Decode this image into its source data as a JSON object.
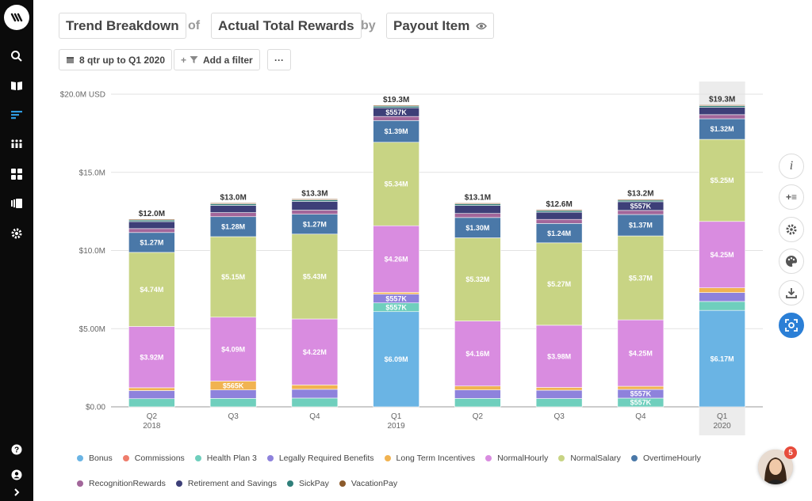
{
  "header": {
    "view": "Trend Breakdown",
    "of_label": "of",
    "metric": "Actual Total Rewards",
    "by_label": "by",
    "dimension": "Payout Item"
  },
  "toolbar": {
    "time_range": "8 qtr up to Q1 2020",
    "add_filter": "Add a filter",
    "more": "···"
  },
  "right_tools": {
    "info": "i",
    "add": "+≡"
  },
  "notification_count": "5",
  "colors": {
    "Bonus": "#6ab4e4",
    "Commissions": "#ef7d6c",
    "Health Plan 3": "#6fcfbd",
    "Legally Required Benefits": "#8e82dc",
    "Long Term Incentives": "#f1b351",
    "NormalHourly": "#d98ce0",
    "NormalSalary": "#c8d484",
    "OvertimeHourly": "#4a78a8",
    "RecognitionRewards": "#a2669a",
    "Retirement and Savings": "#3d3f78",
    "SickPay": "#2f7f7a",
    "VacationPay": "#8b5a2b"
  },
  "chart_data": {
    "type": "bar",
    "stacked": true,
    "title": "Trend Breakdown of Actual Total Rewards by Payout Item",
    "ylim": [
      0,
      20000000
    ],
    "yticks": [
      {
        "value": 0,
        "label": "$0.00"
      },
      {
        "value": 5000000,
        "label": "$5.00M"
      },
      {
        "value": 10000000,
        "label": "$10.0M"
      },
      {
        "value": 15000000,
        "label": "$15.0M"
      },
      {
        "value": 20000000,
        "label": "$20.0M USD"
      }
    ],
    "categories": [
      {
        "label": "Q2",
        "sub": "2018"
      },
      {
        "label": "Q3",
        "sub": ""
      },
      {
        "label": "Q4",
        "sub": ""
      },
      {
        "label": "Q1",
        "sub": "2019"
      },
      {
        "label": "Q2",
        "sub": ""
      },
      {
        "label": "Q3",
        "sub": ""
      },
      {
        "label": "Q4",
        "sub": ""
      },
      {
        "label": "Q1",
        "sub": "2020"
      }
    ],
    "highlighted_category": 7,
    "totals": [
      "$12.0M",
      "$13.0M",
      "$13.3M",
      "$19.3M",
      "$13.1M",
      "$12.6M",
      "$13.2M",
      "$19.3M"
    ],
    "series": [
      {
        "name": "Bonus",
        "values": [
          0,
          0,
          0,
          6090000,
          0,
          0,
          0,
          6170000
        ],
        "labels": [
          "",
          "",
          "",
          "$6.09M",
          "",
          "",
          "",
          "$6.17M"
        ]
      },
      {
        "name": "Commissions",
        "values": [
          0,
          0,
          0,
          0,
          0,
          0,
          0,
          0
        ],
        "labels": [
          "",
          "",
          "",
          "",
          "",
          "",
          "",
          ""
        ]
      },
      {
        "name": "Health Plan 3",
        "values": [
          520000,
          540000,
          560000,
          557000,
          540000,
          530000,
          557000,
          570000
        ],
        "labels": [
          "",
          "",
          "",
          "$557K",
          "",
          "",
          "$557K",
          ""
        ]
      },
      {
        "name": "Legally Required Benefits",
        "values": [
          520000,
          540000,
          560000,
          557000,
          540000,
          530000,
          557000,
          570000
        ],
        "labels": [
          "",
          "",
          "",
          "$557K",
          "",
          "",
          "$557K",
          ""
        ]
      },
      {
        "name": "Long Term Incentives",
        "values": [
          180000,
          565000,
          280000,
          120000,
          250000,
          180000,
          200000,
          300000
        ],
        "labels": [
          "",
          "$565K",
          "",
          "",
          "",
          "",
          "",
          ""
        ]
      },
      {
        "name": "NormalHourly",
        "values": [
          3920000,
          4090000,
          4220000,
          4260000,
          4160000,
          3980000,
          4250000,
          4250000
        ],
        "labels": [
          "$3.92M",
          "$4.09M",
          "$4.22M",
          "$4.26M",
          "$4.16M",
          "$3.98M",
          "$4.25M",
          "$4.25M"
        ]
      },
      {
        "name": "NormalSalary",
        "values": [
          4740000,
          5150000,
          5430000,
          5340000,
          5320000,
          5270000,
          5370000,
          5250000
        ],
        "labels": [
          "$4.74M",
          "$5.15M",
          "$5.43M",
          "$5.34M",
          "$5.32M",
          "$5.27M",
          "$5.37M",
          "$5.25M"
        ]
      },
      {
        "name": "OvertimeHourly",
        "values": [
          1270000,
          1280000,
          1270000,
          1390000,
          1300000,
          1240000,
          1370000,
          1320000
        ],
        "labels": [
          "$1.27M",
          "$1.28M",
          "$1.27M",
          "$1.39M",
          "$1.30M",
          "$1.24M",
          "$1.37M",
          "$1.32M"
        ]
      },
      {
        "name": "RecognitionRewards",
        "values": [
          250000,
          260000,
          260000,
          260000,
          260000,
          260000,
          260000,
          260000
        ],
        "labels": [
          "",
          "",
          "",
          "",
          "",
          "",
          "",
          ""
        ]
      },
      {
        "name": "Retirement and Savings",
        "values": [
          450000,
          460000,
          560000,
          557000,
          510000,
          460000,
          557000,
          470000
        ],
        "labels": [
          "",
          "",
          "",
          "$557K",
          "",
          "",
          "$557K",
          ""
        ]
      },
      {
        "name": "SickPay",
        "values": [
          100000,
          100000,
          100000,
          100000,
          100000,
          100000,
          100000,
          100000
        ],
        "labels": [
          "",
          "",
          "",
          "",
          "",
          "",
          "",
          ""
        ]
      },
      {
        "name": "VacationPay",
        "values": [
          60000,
          60000,
          60000,
          60000,
          60000,
          60000,
          60000,
          60000
        ],
        "labels": [
          "",
          "",
          "",
          "",
          "",
          "",
          "",
          ""
        ]
      }
    ]
  }
}
